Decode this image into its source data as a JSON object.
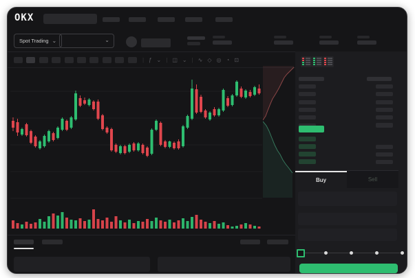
{
  "brand": {
    "logo": "OKX"
  },
  "topbar": {
    "nav_items": 5
  },
  "instrument_bar": {
    "market_mode_label": "Spot Trading",
    "stat_groups": 4
  },
  "chart_toolbar": {
    "placeholder_buttons": 10,
    "icons": [
      {
        "name": "divider",
        "glyph": "|"
      },
      {
        "name": "indicators-icon",
        "glyph": "ƒ"
      },
      {
        "name": "chevron-down-icon",
        "glyph": "⌄"
      },
      {
        "name": "divider",
        "glyph": "|"
      },
      {
        "name": "candle-style-icon",
        "glyph": "◫"
      },
      {
        "name": "chevron-down-icon",
        "glyph": "⌄"
      },
      {
        "name": "divider",
        "glyph": "|"
      },
      {
        "name": "line-tool-icon",
        "glyph": "∿"
      },
      {
        "name": "draw-tool-icon",
        "glyph": "◇"
      },
      {
        "name": "screenshot-icon",
        "glyph": "◎"
      },
      {
        "name": "timer-icon",
        "glyph": "◔"
      },
      {
        "name": "fullscreen-icon",
        "glyph": "⊡"
      }
    ]
  },
  "chart_data": {
    "type": "candlestick",
    "up_color": "#2ebd70",
    "down_color": "#e0464d",
    "gridlines": 5,
    "candles": [
      [
        65,
        70,
        50,
        55
      ],
      [
        63,
        68,
        43,
        48
      ],
      [
        45,
        55,
        43,
        53
      ],
      [
        60,
        62,
        42,
        44
      ],
      [
        50,
        52,
        31,
        33
      ],
      [
        42,
        44,
        26,
        28
      ],
      [
        25,
        37,
        23,
        35
      ],
      [
        28,
        45,
        26,
        43
      ],
      [
        35,
        52,
        33,
        50
      ],
      [
        47,
        49,
        35,
        37
      ],
      [
        40,
        57,
        38,
        55
      ],
      [
        52,
        70,
        50,
        68
      ],
      [
        65,
        67,
        50,
        52
      ],
      [
        55,
        72,
        53,
        70
      ],
      [
        67,
        109,
        65,
        105
      ],
      [
        98,
        102,
        85,
        87
      ],
      [
        95,
        99,
        88,
        90
      ],
      [
        88,
        98,
        86,
        96
      ],
      [
        93,
        95,
        80,
        82
      ],
      [
        93,
        96,
        66,
        68
      ],
      [
        73,
        75,
        51,
        53
      ],
      [
        55,
        57,
        46,
        48
      ],
      [
        53,
        55,
        20,
        22
      ],
      [
        30,
        32,
        18,
        20
      ],
      [
        18,
        30,
        16,
        28
      ],
      [
        28,
        30,
        16,
        18
      ],
      [
        20,
        32,
        18,
        30
      ],
      [
        32,
        34,
        20,
        22
      ],
      [
        22,
        34,
        20,
        32
      ],
      [
        30,
        32,
        16,
        18
      ],
      [
        26,
        28,
        12,
        14
      ],
      [
        17,
        54,
        15,
        52
      ],
      [
        52,
        67,
        50,
        65
      ],
      [
        62,
        64,
        28,
        30
      ],
      [
        35,
        37,
        25,
        27
      ],
      [
        27,
        36,
        25,
        35
      ],
      [
        33,
        35,
        23,
        25
      ],
      [
        35,
        38,
        23,
        25
      ],
      [
        28,
        59,
        26,
        57
      ],
      [
        55,
        74,
        53,
        72
      ],
      [
        68,
        125,
        66,
        112
      ],
      [
        111,
        118,
        75,
        77
      ],
      [
        100,
        103,
        76,
        78
      ],
      [
        80,
        82,
        68,
        70
      ],
      [
        67,
        79,
        65,
        77
      ],
      [
        82,
        85,
        71,
        73
      ],
      [
        73,
        84,
        71,
        82
      ],
      [
        80,
        112,
        78,
        110
      ],
      [
        98,
        101,
        85,
        87
      ],
      [
        88,
        104,
        86,
        102
      ],
      [
        102,
        124,
        100,
        122
      ],
      [
        112,
        115,
        98,
        100
      ],
      [
        99,
        111,
        97,
        109
      ],
      [
        107,
        110,
        99,
        101
      ],
      [
        103,
        116,
        101,
        114
      ],
      [
        112,
        118,
        103,
        105
      ]
    ],
    "volumes": [
      12,
      8,
      6,
      10,
      7,
      9,
      14,
      10,
      18,
      22,
      19,
      24,
      16,
      13,
      12,
      15,
      11,
      13,
      28,
      14,
      12,
      16,
      10,
      18,
      12,
      9,
      13,
      8,
      11,
      10,
      14,
      11,
      16,
      12,
      10,
      13,
      9,
      12,
      15,
      11,
      17,
      20,
      13,
      10,
      8,
      11,
      7,
      9,
      5,
      3,
      4,
      6,
      8,
      6,
      4,
      3
    ]
  },
  "depth_chart": {
    "type": "area",
    "ask_color": "#a85252",
    "bid_color": "#3f8e6b",
    "ask_curve": [
      [
        0,
        79
      ],
      [
        4,
        73
      ],
      [
        7,
        65
      ],
      [
        11,
        55
      ],
      [
        14,
        48
      ],
      [
        19,
        40
      ],
      [
        23,
        33
      ],
      [
        27,
        25
      ],
      [
        31,
        17
      ],
      [
        35,
        12
      ],
      [
        39,
        8
      ],
      [
        42,
        5
      ],
      [
        45,
        2
      ]
    ],
    "bid_curve": [
      [
        0,
        81
      ],
      [
        5,
        87
      ],
      [
        9,
        95
      ],
      [
        13,
        105
      ],
      [
        17,
        115
      ],
      [
        21,
        123
      ],
      [
        25,
        129
      ],
      [
        29,
        137
      ],
      [
        33,
        143
      ],
      [
        37,
        148
      ],
      [
        40,
        152
      ],
      [
        43,
        156
      ]
    ]
  },
  "orderbook": {
    "view_icons": [
      {
        "name": "book-combined-icon",
        "style": "both"
      },
      {
        "name": "book-bids-icon",
        "style": "bids"
      },
      {
        "name": "book-asks-icon",
        "style": "asks"
      }
    ],
    "ask_rows": 6,
    "bid_rows": 4,
    "bid_amount_offset": 1,
    "last_price_color": "#2ebd70"
  },
  "trade_panel": {
    "tabs": [
      {
        "label": "Buy",
        "active": true
      },
      {
        "label": "Sell",
        "active": false
      }
    ],
    "input_fields": 3,
    "slider": {
      "stops": 5,
      "active_stop": 0
    },
    "submit_color": "#2ebd70"
  },
  "bottom_panel": {
    "tabs": 2,
    "right_buttons": 2,
    "blocks": 2
  }
}
